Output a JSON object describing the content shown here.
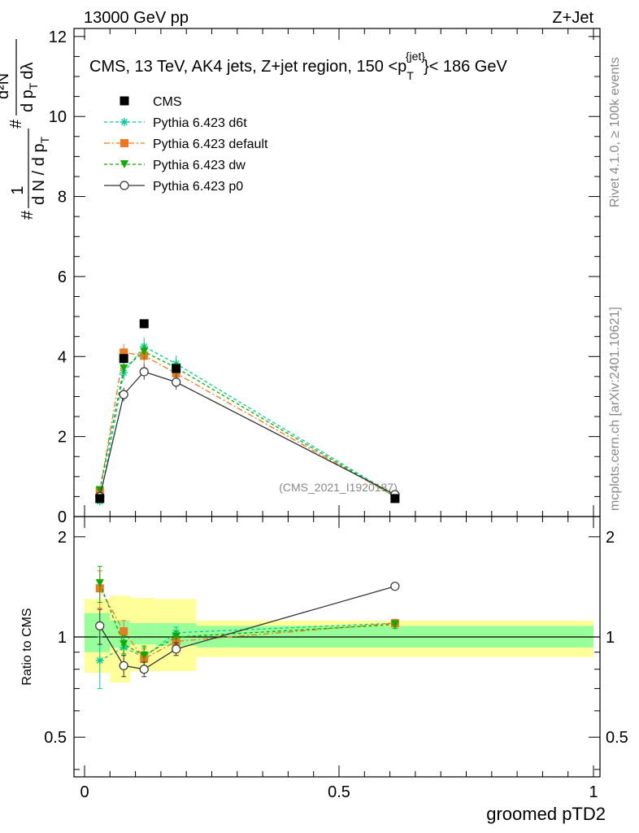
{
  "header": {
    "left": "13000 GeV pp",
    "right": "Z+Jet"
  },
  "side": {
    "rivet": "Rivet 4.1.0, ≥ 100k events",
    "mcplots": "mcplots.cern.ch [arXiv:2401.10621]"
  },
  "watermark": "(CMS_2021_I1920187)",
  "chart_data": {
    "type": "line",
    "title": "CMS, 13 TeV, AK4 jets, Z+jet region, 150 <p_T^{jet}< 186 GeV",
    "title_parts": {
      "main": "CMS, 13 TeV, AK4 jets, Z+jet region, 150 <p",
      "sub": "T",
      "sup": "{jet}",
      "end": "}< 186 GeV"
    },
    "xlabel": "groomed pTD2",
    "ylabel": "1/N dN/dpT dλ",
    "ylabel_parts": {
      "lead": "#",
      "frac1_num": "1",
      "frac1_den": "d N / d p",
      "den_sub": "T",
      "mid": "#",
      "frac2_num": "d²N",
      "frac2_den": "d p",
      "frac2_sub": "T",
      "frac2_end": "dλ"
    },
    "ratio_ylabel": "Ratio to CMS",
    "xlim": [
      0,
      1
    ],
    "ylim": [
      0,
      12.2
    ],
    "ratio_ylim": [
      0.38,
      2.3
    ],
    "x_ticks": [
      0,
      0.5,
      1
    ],
    "x_tick_labels": [
      "0",
      "0.5",
      "1"
    ],
    "y_ticks": [
      0,
      2,
      4,
      6,
      8,
      10,
      12
    ],
    "y_tick_labels": [
      "0",
      "2",
      "4",
      "6",
      "8",
      "10",
      "12"
    ],
    "ratio_ticks": [
      0.5,
      1,
      2
    ],
    "ratio_tick_labels": [
      "0.5",
      "1",
      "2"
    ],
    "bins": [
      0,
      0.05,
      0.09,
      0.14,
      0.22,
      1.0
    ],
    "x": [
      0.03,
      0.077,
      0.117,
      0.18,
      0.61
    ],
    "data": {
      "name": "CMS",
      "values": [
        0.45,
        3.95,
        4.82,
        3.7,
        0.45
      ]
    },
    "ratio_bands": {
      "stat": [
        [
          0.9,
          1.18
        ],
        [
          0.93,
          1.12
        ],
        [
          0.95,
          1.1
        ],
        [
          0.94,
          1.1
        ],
        [
          0.93,
          1.08
        ]
      ],
      "total": [
        [
          0.78,
          1.3
        ],
        [
          0.73,
          1.33
        ],
        [
          0.79,
          1.31
        ],
        [
          0.79,
          1.3
        ],
        [
          0.87,
          1.12
        ]
      ]
    },
    "series": [
      {
        "name": "Pythia 6.423 d6t",
        "color": "#00cc99",
        "marker": "star",
        "dash": "4,3",
        "values": [
          0.38,
          3.6,
          4.25,
          3.82,
          0.52
        ],
        "ratio": [
          0.85,
          0.93,
          0.87,
          1.03,
          1.1
        ],
        "ratio_err": [
          0.15,
          0.05,
          0.06,
          0.04,
          0.03
        ]
      },
      {
        "name": "Pythia 6.423 default",
        "color": "#ee7722",
        "marker": "square",
        "dash": "7,3,2,3",
        "values": [
          0.63,
          4.1,
          4.02,
          3.58,
          0.5
        ],
        "ratio": [
          1.4,
          1.04,
          0.86,
          0.97,
          1.1
        ],
        "ratio_err": [
          0.18,
          0.08,
          0.06,
          0.04,
          0.03
        ]
      },
      {
        "name": "Pythia 6.423 dw",
        "color": "#11aa00",
        "marker": "triangle",
        "dash": "4,3",
        "values": [
          0.66,
          3.7,
          4.12,
          3.72,
          0.5
        ],
        "ratio": [
          1.45,
          0.95,
          0.88,
          1.0,
          1.09
        ],
        "ratio_err": [
          0.18,
          0.06,
          0.06,
          0.04,
          0.03
        ]
      },
      {
        "name": "Pythia 6.423 p0",
        "color": "#333333",
        "marker": "circle",
        "dash": "",
        "values": [
          0.5,
          3.05,
          3.62,
          3.36,
          0.55
        ],
        "ratio": [
          1.08,
          0.82,
          0.8,
          0.92,
          1.42
        ],
        "ratio_err": [
          0.13,
          0.06,
          0.04,
          0.04,
          0.03
        ]
      }
    ]
  }
}
